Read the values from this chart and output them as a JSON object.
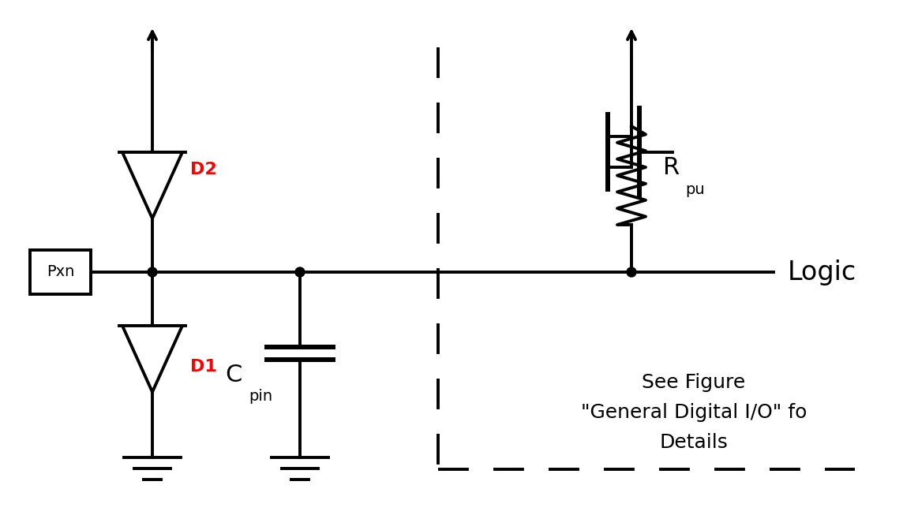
{
  "bg_color": "#ffffff",
  "line_color": "#000000",
  "line_width": 2.8,
  "red_color": "#ff0000",
  "pxn_label": "Pxn",
  "d1_label": "D1",
  "d2_label": "D2",
  "cpin_label_main": "C",
  "cpin_label_sub": "pin",
  "rpu_label_main": "R",
  "rpu_label_sub": "pu",
  "logic_label": "Logic",
  "see_figure_line1": "See Figure",
  "see_figure_line2": "\"General Digital I/O\" fo",
  "see_figure_line3": "Details"
}
